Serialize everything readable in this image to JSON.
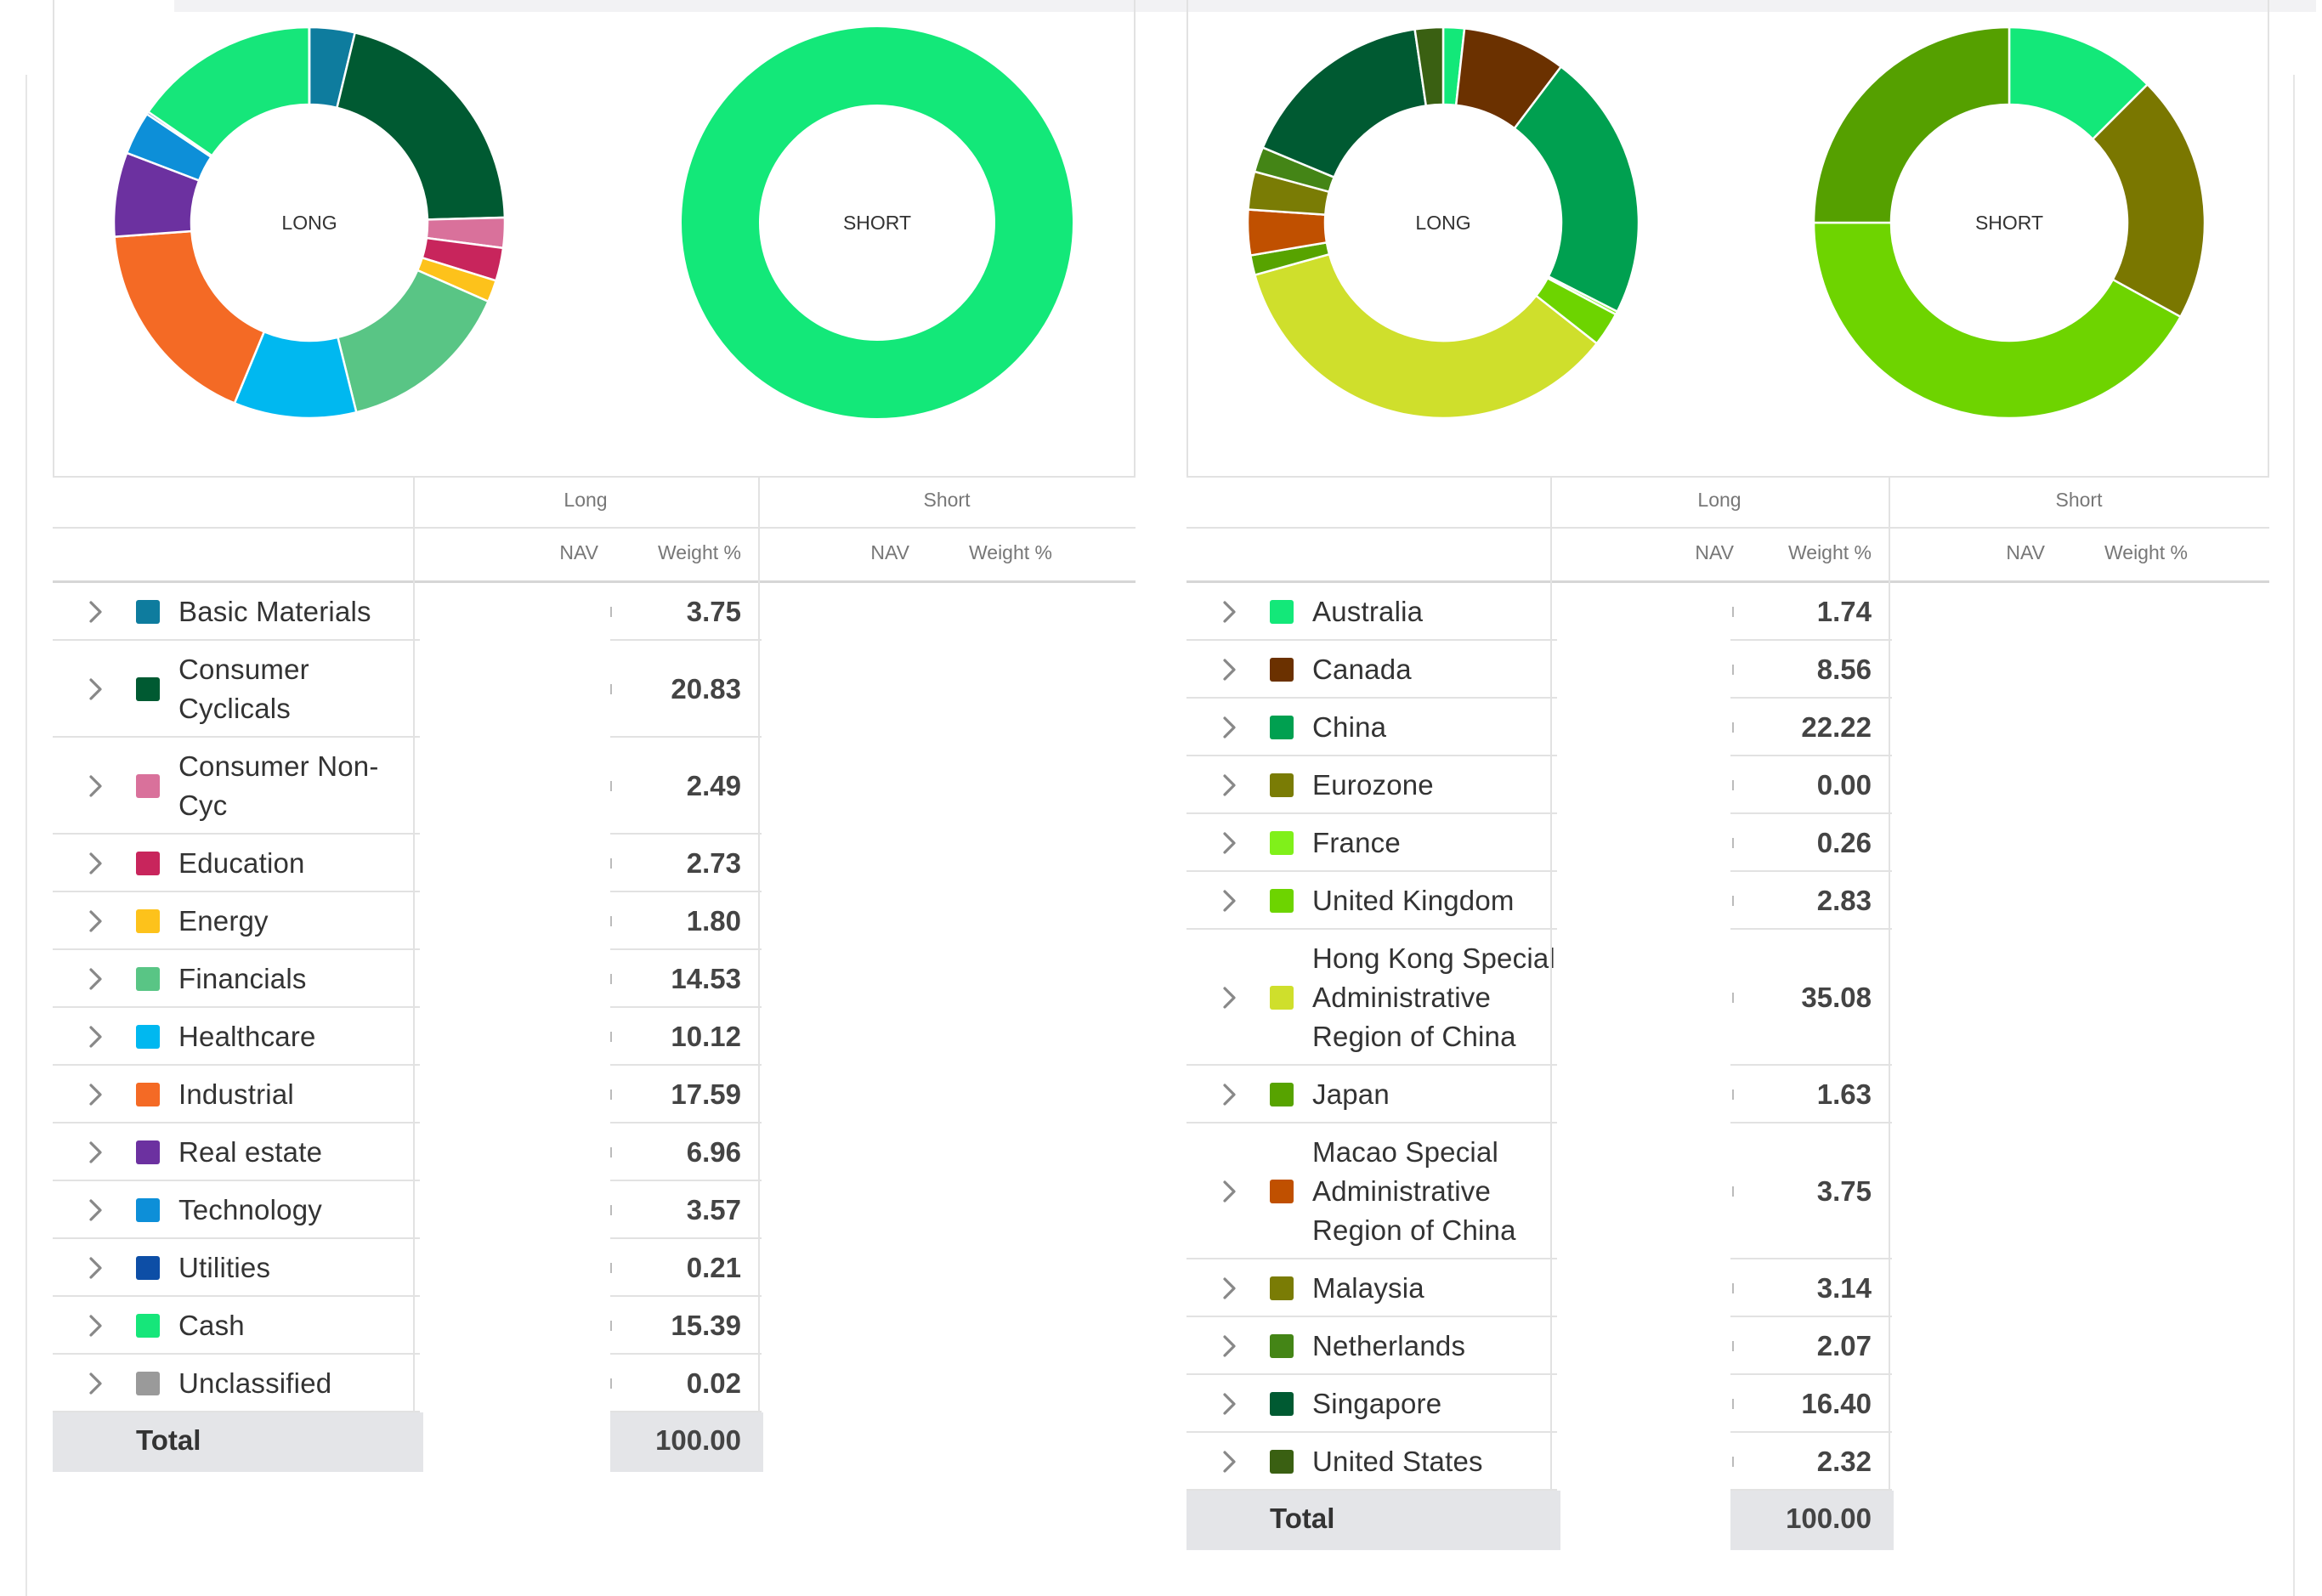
{
  "sector_panel": {
    "long_chart_label": "LONG",
    "short_chart_label": "SHORT",
    "group_long": "Long",
    "group_short": "Short",
    "col_nav": "NAV",
    "col_weight": "Weight %",
    "rows": [
      {
        "label": "Basic Materials",
        "weight": "3.75",
        "color": "#0e7c9e"
      },
      {
        "label": "Consumer Cyclicals",
        "weight": "20.83",
        "color": "#005a32"
      },
      {
        "label": "Consumer Non-Cyc",
        "weight": "2.49",
        "color": "#d9719b"
      },
      {
        "label": "Education",
        "weight": "2.73",
        "color": "#c8255c"
      },
      {
        "label": "Energy",
        "weight": "1.80",
        "color": "#fdc21b"
      },
      {
        "label": "Financials",
        "weight": "14.53",
        "color": "#59c585"
      },
      {
        "label": "Healthcare",
        "weight": "10.12",
        "color": "#00b8f0"
      },
      {
        "label": "Industrial",
        "weight": "17.59",
        "color": "#f46a25"
      },
      {
        "label": "Real estate",
        "weight": "6.96",
        "color": "#6c31a0"
      },
      {
        "label": "Technology",
        "weight": "3.57",
        "color": "#0d8fd8"
      },
      {
        "label": "Utilities",
        "weight": "0.21",
        "color": "#0d4ea6"
      },
      {
        "label": "Cash",
        "weight": "15.39",
        "color": "#16e67a"
      },
      {
        "label": "Unclassified",
        "weight": "0.02",
        "color": "#9a9a9a"
      }
    ],
    "total_label": "Total",
    "total_weight": "100.00",
    "short_slices": [
      {
        "label": "Cash",
        "weight": 100,
        "color": "#13e879"
      }
    ]
  },
  "region_panel": {
    "long_chart_label": "LONG",
    "short_chart_label": "SHORT",
    "group_long": "Long",
    "group_short": "Short",
    "col_nav": "NAV",
    "col_weight": "Weight %",
    "rows": [
      {
        "label": "Australia",
        "weight": "1.74",
        "color": "#13e879"
      },
      {
        "label": "Canada",
        "weight": "8.56",
        "color": "#6b3100"
      },
      {
        "label": "China",
        "weight": "22.22",
        "color": "#00a050"
      },
      {
        "label": "Eurozone",
        "weight": "0.00",
        "color": "#7a7c05"
      },
      {
        "label": "France",
        "weight": "0.26",
        "color": "#80f01a"
      },
      {
        "label": "United Kingdom",
        "weight": "2.83",
        "color": "#6dd400"
      },
      {
        "label": "Hong Kong Special Administrative Region of China",
        "weight": "35.08",
        "color": "#cfdf2c"
      },
      {
        "label": "Japan",
        "weight": "1.63",
        "color": "#57a300"
      },
      {
        "label": "Macao Special Administrative Region of China",
        "weight": "3.75",
        "color": "#c05000"
      },
      {
        "label": "Malaysia",
        "weight": "3.14",
        "color": "#7a7c05"
      },
      {
        "label": "Netherlands",
        "weight": "2.07",
        "color": "#448516"
      },
      {
        "label": "Singapore",
        "weight": "16.40",
        "color": "#005a32"
      },
      {
        "label": "United States",
        "weight": "2.32",
        "color": "#3a6012"
      }
    ],
    "total_label": "Total",
    "total_weight": "100.00",
    "short_slices": [
      {
        "weight": 12.5,
        "color": "#13e879"
      },
      {
        "weight": 20.5,
        "color": "#7a7700"
      },
      {
        "weight": 42.0,
        "color": "#6ed400"
      },
      {
        "weight": 25.0,
        "color": "#55a000"
      }
    ]
  }
}
